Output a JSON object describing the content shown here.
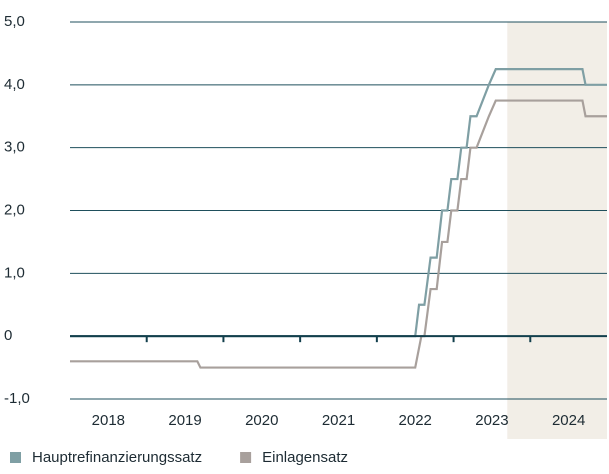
{
  "chart_data": {
    "type": "line",
    "ylim": [
      -1,
      5
    ],
    "yticks": [
      {
        "value": -1,
        "label": "-1,0"
      },
      0,
      {
        "value": 1,
        "label": "1,0"
      },
      {
        "value": 2,
        "label": "2,0"
      },
      {
        "value": 3,
        "label": "3,0"
      },
      {
        "value": 4,
        "label": "4,0"
      },
      {
        "value": 5,
        "label": "5,0"
      }
    ],
    "xlim": [
      2018,
      2025
    ],
    "xticks": [
      {
        "value": 2018.5,
        "label": "2018"
      },
      {
        "value": 2019.5,
        "label": "2019"
      },
      {
        "value": 2020.5,
        "label": "2020"
      },
      {
        "value": 2021.5,
        "label": "2021"
      },
      {
        "value": 2022.5,
        "label": "2022"
      },
      {
        "value": 2023.5,
        "label": "2023"
      },
      {
        "value": 2024.5,
        "label": "2024"
      }
    ],
    "x_tick_marks": [
      2019,
      2020,
      2021,
      2022,
      2023,
      2024
    ],
    "shaded_from": 2023.7,
    "shade_color": "#f2eee7",
    "grid": true,
    "legend": "bottom",
    "series": [
      {
        "name": "Hauptrefinanzierungssatz",
        "color": "#7f9fa4",
        "x": [
          2018,
          2022.5,
          2022.55,
          2022.62,
          2022.7,
          2022.78,
          2022.85,
          2022.92,
          2022.97,
          2023.05,
          2023.1,
          2023.17,
          2023.22,
          2023.3,
          2023.46,
          2023.55,
          2024.68,
          2024.72,
          2025
        ],
        "values": [
          0,
          0,
          0.5,
          0.5,
          1.25,
          1.25,
          2,
          2,
          2.5,
          2.5,
          3,
          3,
          3.5,
          3.5,
          4,
          4.25,
          4.25,
          4,
          4
        ]
      },
      {
        "name": "Einlagensatz",
        "color": "#a8a09c",
        "x": [
          2018,
          2019.66,
          2019.7,
          2022.5,
          2022.58,
          2022.62,
          2022.7,
          2022.78,
          2022.85,
          2022.92,
          2022.97,
          2023.05,
          2023.1,
          2023.17,
          2023.22,
          2023.3,
          2023.46,
          2023.55,
          2024.68,
          2024.72,
          2025
        ],
        "values": [
          -0.4,
          -0.4,
          -0.5,
          -0.5,
          0,
          0,
          0.75,
          0.75,
          1.5,
          1.5,
          2,
          2,
          2.5,
          2.5,
          3,
          3,
          3.5,
          3.75,
          3.75,
          3.5,
          3.5
        ]
      }
    ]
  }
}
